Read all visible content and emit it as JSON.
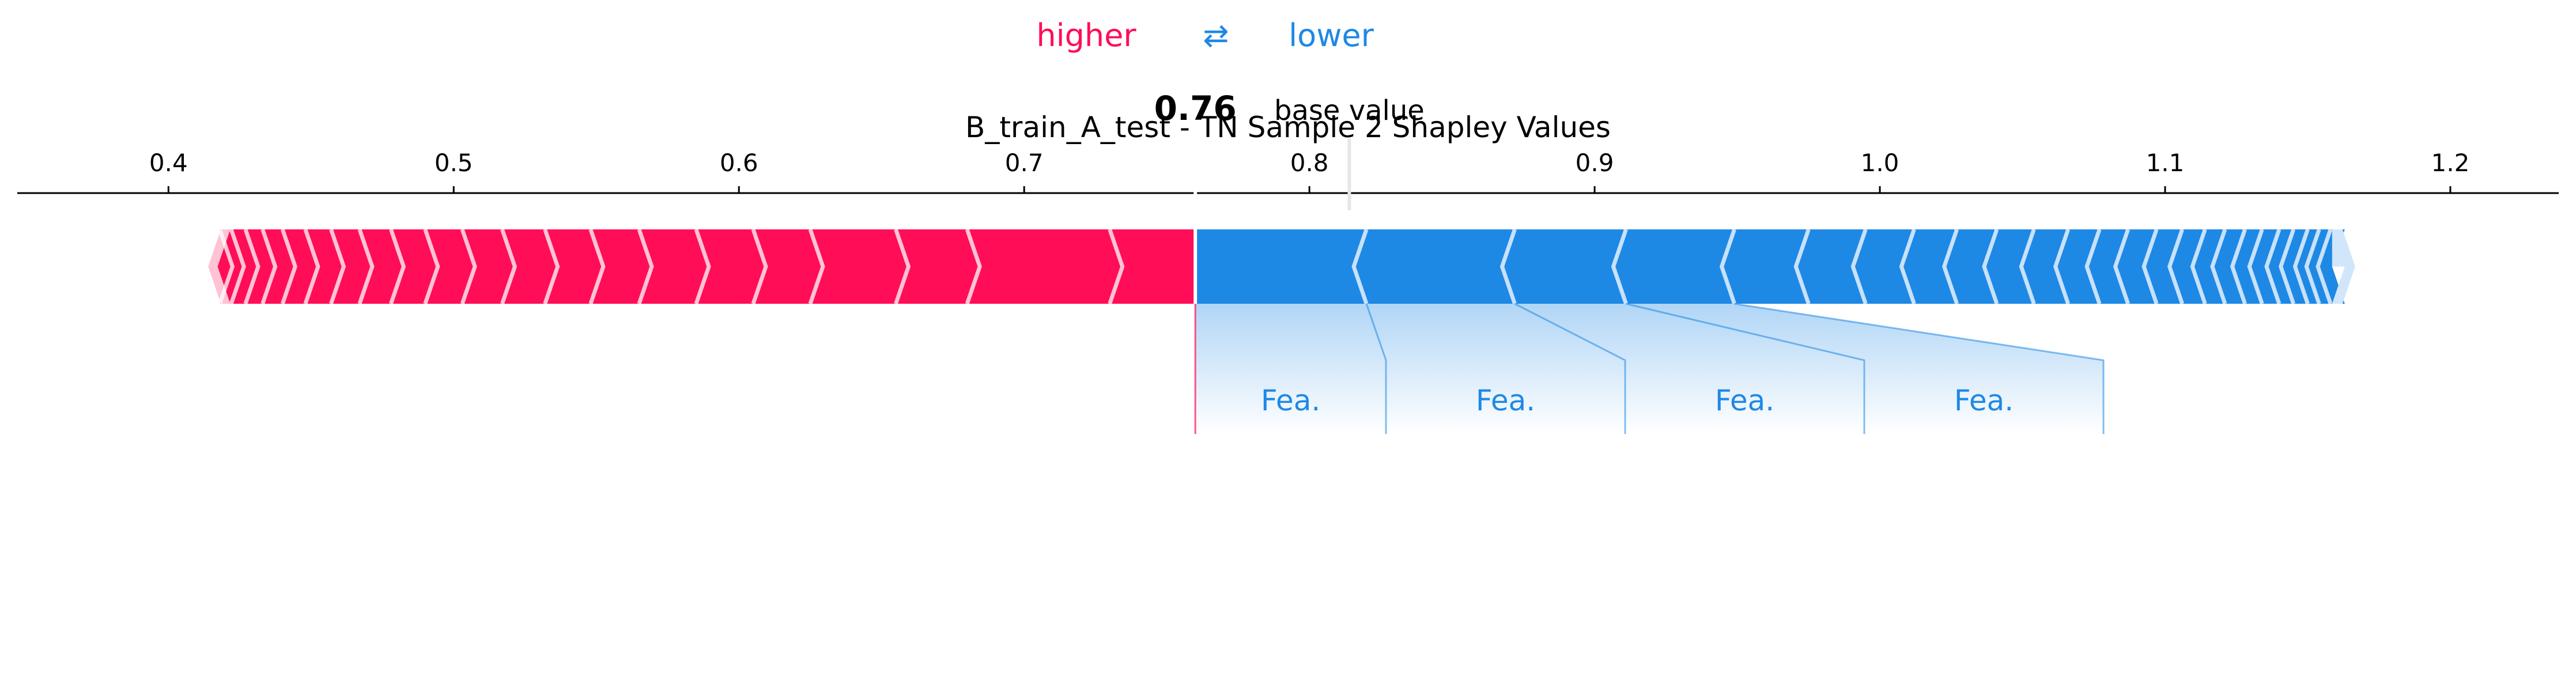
{
  "chart_data": {
    "type": "force_plot",
    "title": "B_train_A_test - TN Sample 2 Shapley Values",
    "legend": {
      "higher": "higher",
      "arrows": "⇄",
      "lower": "lower"
    },
    "output_value": 0.76,
    "output_value_label": "0.76",
    "base_value": 0.814,
    "base_value_label": "base value",
    "xlim": [
      0.347,
      1.238
    ],
    "ticks": [
      0.4,
      0.5,
      0.6,
      0.7,
      0.8,
      0.9,
      1.0,
      1.1,
      1.2
    ],
    "tick_labels": [
      "0.4",
      "0.5",
      "0.6",
      "0.7",
      "0.8",
      "0.9",
      "1.0",
      "1.1",
      "1.2"
    ],
    "range": [
      0.414,
      1.163
    ],
    "positive_boundaries": [
      0.76,
      0.73,
      0.68,
      0.655,
      0.625,
      0.605,
      0.585,
      0.565,
      0.548,
      0.532,
      0.517,
      0.503,
      0.49,
      0.478,
      0.467,
      0.457,
      0.448,
      0.44,
      0.433,
      0.427,
      0.422,
      0.418,
      0.414
    ],
    "negative_boundaries": [
      0.76,
      0.82,
      0.872,
      0.911,
      0.949,
      0.975,
      0.995,
      1.012,
      1.027,
      1.041,
      1.054,
      1.066,
      1.077,
      1.087,
      1.097,
      1.106,
      1.114,
      1.121,
      1.128,
      1.134,
      1.14,
      1.145,
      1.15,
      1.154,
      1.158,
      1.163
    ],
    "feature_labels": [
      "Fea.",
      "Fea.",
      "Fea.",
      "Fea."
    ],
    "colors": {
      "positive": "#ff0d57",
      "negative": "#1e88e5",
      "positive_light": "#ffc3d5",
      "negative_light": "#d1e6fa"
    }
  }
}
